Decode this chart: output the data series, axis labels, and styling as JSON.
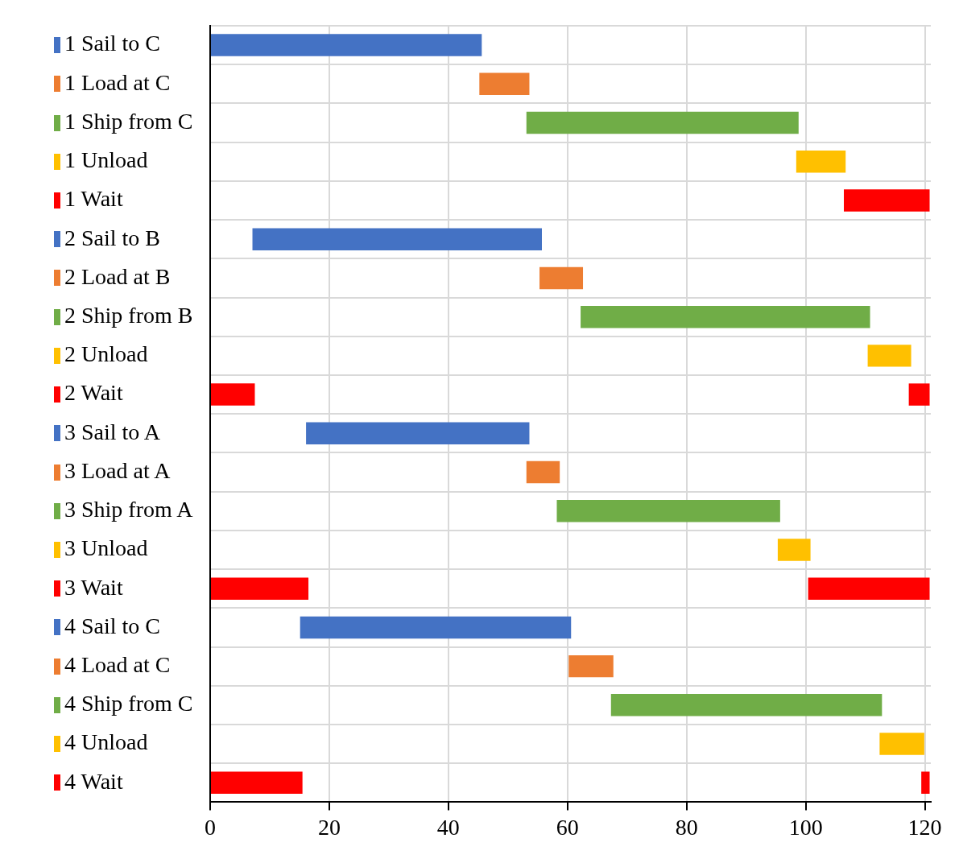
{
  "chart_data": {
    "type": "bar",
    "orientation": "horizontal",
    "categories": [
      "1 Sail to C",
      "1 Load at C",
      "1 Ship from C",
      "1 Unload",
      "1 Wait",
      "2 Sail to B",
      "2 Load at B",
      "2 Ship from B",
      "2 Unload",
      "2 Wait",
      "3 Sail to A",
      "3 Load at A",
      "3 Ship from A",
      "3 Unload",
      "3 Wait",
      "4 Sail to C",
      "4 Load at C",
      "4 Ship from C",
      "4 Unload",
      "4 Wait"
    ],
    "series": [
      {
        "colors": [
          "#4472c4",
          "#ed7d31",
          "#70ad47",
          "#ffc000",
          "#ff0000",
          "#4472c4",
          "#ed7d31",
          "#70ad47",
          "#ffc000",
          "#ff0000",
          "#4472c4",
          "#ed7d31",
          "#70ad47",
          "#ffc000",
          "#ff0000",
          "#4472c4",
          "#ed7d31",
          "#70ad47",
          "#ffc000",
          "#ff0000"
        ],
        "base": [
          0,
          45.2,
          53.1,
          98.4,
          106.4,
          7.1,
          55.3,
          62.2,
          110.4,
          0,
          16.1,
          53.1,
          58.2,
          95.3,
          0,
          15.1,
          60.2,
          67.3,
          112.4,
          0
        ],
        "values": [
          45.6,
          8.4,
          45.7,
          8.3,
          14.4,
          48.6,
          7.3,
          48.6,
          7.3,
          7.5,
          37.5,
          5.6,
          37.5,
          5.5,
          16.5,
          45.5,
          7.5,
          45.5,
          7.5,
          15.5
        ]
      },
      {
        "colors": [
          null,
          null,
          null,
          null,
          null,
          null,
          null,
          null,
          null,
          "#ff0000",
          null,
          null,
          null,
          null,
          "#ff0000",
          null,
          null,
          null,
          null,
          "#ff0000"
        ],
        "base": [
          null,
          null,
          null,
          null,
          null,
          null,
          null,
          null,
          null,
          117.3,
          null,
          null,
          null,
          null,
          100.4,
          null,
          null,
          null,
          null,
          119.4
        ],
        "values": [
          null,
          null,
          null,
          null,
          null,
          null,
          null,
          null,
          null,
          3.5,
          null,
          null,
          null,
          null,
          20.4,
          null,
          null,
          null,
          null,
          1.4
        ]
      }
    ],
    "xlim": [
      0,
      121
    ],
    "xticks": [
      0,
      20,
      40,
      60,
      80,
      100,
      120
    ],
    "grid": true,
    "legend": false
  }
}
